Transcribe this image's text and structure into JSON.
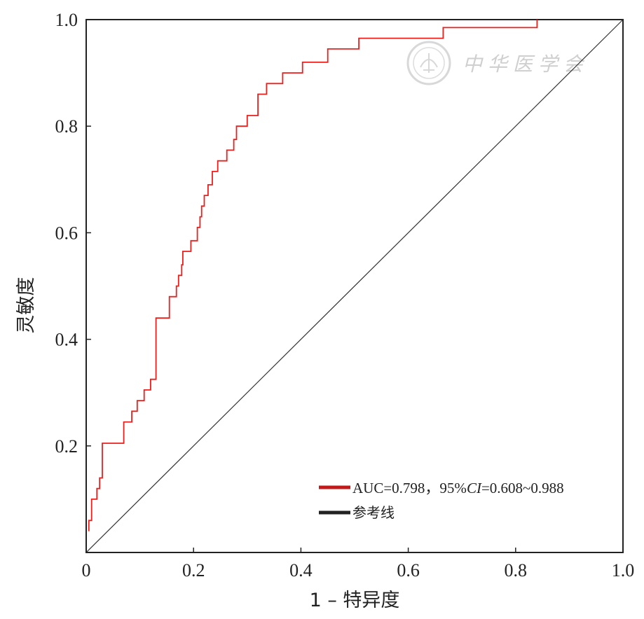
{
  "chart_data": {
    "type": "line",
    "title": "",
    "xlabel": "1 – 特异度",
    "ylabel": "灵敏度",
    "xlim": [
      0,
      1
    ],
    "ylim": [
      0,
      1
    ],
    "x_ticks": [
      "0",
      "0.2",
      "0.4",
      "0.6",
      "0.8",
      "1.0"
    ],
    "y_ticks": [
      "0.2",
      "0.4",
      "0.6",
      "0.8",
      "1.0"
    ],
    "grid": false,
    "legend_position": "bottom-right",
    "series": [
      {
        "name": "AUC=0.798，95%CI=0.608~0.988",
        "color": "#e8201e",
        "style": "step",
        "x": [
          0.005,
          0.005,
          0.01,
          0.01,
          0.012,
          0.012,
          0.02,
          0.02,
          0.025,
          0.025,
          0.03,
          0.03,
          0.035,
          0.035,
          0.07,
          0.07,
          0.085,
          0.085,
          0.095,
          0.095,
          0.108,
          0.108,
          0.12,
          0.12,
          0.13,
          0.13,
          0.155,
          0.155,
          0.168,
          0.168,
          0.172,
          0.172,
          0.178,
          0.178,
          0.18,
          0.18,
          0.195,
          0.195,
          0.207,
          0.207,
          0.212,
          0.212,
          0.215,
          0.215,
          0.22,
          0.22,
          0.227,
          0.227,
          0.235,
          0.235,
          0.245,
          0.245,
          0.262,
          0.262,
          0.275,
          0.275,
          0.28,
          0.28,
          0.3,
          0.3,
          0.32,
          0.32,
          0.336,
          0.336,
          0.366,
          0.366,
          0.403,
          0.403,
          0.45,
          0.45,
          0.508,
          0.508,
          0.515,
          0.515,
          0.665,
          0.665,
          0.84,
          0.84
        ],
        "y": [
          0.04,
          0.06,
          0.06,
          0.1,
          0.1,
          0.1,
          0.1,
          0.12,
          0.12,
          0.14,
          0.14,
          0.205,
          0.205,
          0.205,
          0.205,
          0.245,
          0.245,
          0.265,
          0.265,
          0.285,
          0.285,
          0.305,
          0.305,
          0.325,
          0.325,
          0.44,
          0.44,
          0.48,
          0.48,
          0.5,
          0.5,
          0.52,
          0.52,
          0.54,
          0.54,
          0.565,
          0.565,
          0.585,
          0.585,
          0.61,
          0.61,
          0.63,
          0.63,
          0.65,
          0.65,
          0.67,
          0.67,
          0.69,
          0.69,
          0.715,
          0.715,
          0.735,
          0.735,
          0.755,
          0.755,
          0.775,
          0.775,
          0.8,
          0.8,
          0.82,
          0.82,
          0.86,
          0.86,
          0.88,
          0.88,
          0.9,
          0.9,
          0.92,
          0.92,
          0.945,
          0.945,
          0.965,
          0.965,
          0.965,
          0.965,
          0.985,
          0.985,
          1.0
        ]
      },
      {
        "name": "参考线",
        "color": "#333333",
        "style": "line",
        "x": [
          0,
          1
        ],
        "y": [
          0,
          1
        ]
      }
    ]
  },
  "legend": {
    "auc_label": "AUC=0.798，95%",
    "ci_label": "CI",
    "auc_range": "=0.608~0.988",
    "reference_label": "参考线"
  },
  "watermark": {
    "text": "中华医学会"
  }
}
